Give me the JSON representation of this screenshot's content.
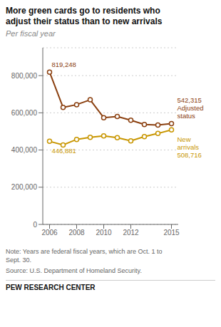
{
  "chart_data": {
    "type": "line",
    "title": "More green cards go to residents who\nadjust their status than to new arrivals",
    "subtitle": "Per fiscal year",
    "x": [
      2006,
      2007,
      2008,
      2009,
      2010,
      2011,
      2012,
      2013,
      2014,
      2015
    ],
    "series": [
      {
        "name": "Adjusted status",
        "color": "#8B4010",
        "marker": "circle",
        "values": [
          819248,
          629000,
          644000,
          670000,
          574000,
          580000,
          560000,
          537000,
          534000,
          542315
        ]
      },
      {
        "name": "New arrivals",
        "color": "#C89600",
        "marker": "circle",
        "values": [
          446881,
          427000,
          457000,
          468000,
          476000,
          466000,
          449000,
          472000,
          489000,
          508716
        ]
      }
    ],
    "xlim": [
      2005.5,
      2015.5
    ],
    "xticks": [
      2006,
      2008,
      2010,
      2012,
      2015
    ],
    "ylim": [
      0,
      950000
    ],
    "yticks": [
      0,
      {
        "value": 200000,
        "label": "200,000"
      },
      {
        "value": 400000,
        "label": "400,000"
      },
      {
        "value": 600000,
        "label": "600,000"
      },
      {
        "value": 800000,
        "label": "800,000"
      }
    ],
    "grid": true,
    "annotations": [
      {
        "text": "819,248",
        "x": 2006,
        "y": 819248
      },
      {
        "text": "446,881",
        "x": 2006,
        "y": 446881
      },
      {
        "text": "542,315\nAdjusted\nstatus",
        "x": 2015,
        "y": 542315
      },
      {
        "text": "New\narrivals\n508,716",
        "x": 2015,
        "y": 508716
      }
    ],
    "note": "Note: Years are federal fiscal years, which are Oct. 1 to\nSept. 30.",
    "source": "Source: U.S. Department of Homeland Security.",
    "footer": "PEW RESEARCH CENTER"
  }
}
